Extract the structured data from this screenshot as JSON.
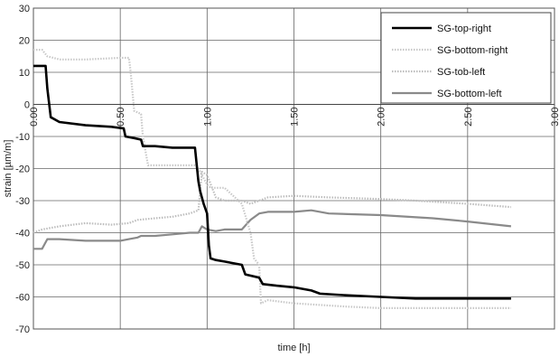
{
  "chart_data": {
    "type": "line",
    "title": "",
    "xlabel": "time [h]",
    "ylabel": "strain [µm/m]",
    "xlim": [
      0,
      3
    ],
    "ylim": [
      -70,
      30
    ],
    "x_ticks": [
      "0.00",
      "0.50",
      "1.00",
      "1.50",
      "2.00",
      "2.50",
      "3.00"
    ],
    "y_ticks": [
      "30",
      "20",
      "10",
      "0",
      "-10",
      "-20",
      "-30",
      "-40",
      "-50",
      "-60",
      "-70"
    ],
    "grid": true,
    "legend_position": "top-right",
    "series": [
      {
        "name": "SG-top-right",
        "color": "#000000",
        "style": "solid-thick",
        "x": [
          0.0,
          0.07,
          0.08,
          0.1,
          0.15,
          0.3,
          0.45,
          0.52,
          0.53,
          0.58,
          0.62,
          0.63,
          0.7,
          0.8,
          0.93,
          0.95,
          0.96,
          0.98,
          1.0,
          1.01,
          1.02,
          1.05,
          1.1,
          1.2,
          1.22,
          1.3,
          1.32,
          1.4,
          1.5,
          1.6,
          1.65,
          1.8,
          2.0,
          2.2,
          2.5,
          2.75
        ],
        "y": [
          12,
          12,
          5,
          -4,
          -5.5,
          -6.5,
          -7,
          -7.5,
          -10,
          -10.5,
          -11,
          -13,
          -13,
          -13.5,
          -13.5,
          -24,
          -27,
          -31,
          -34,
          -44,
          -48,
          -48.5,
          -49,
          -50,
          -53,
          -54,
          -56,
          -56.5,
          -57,
          -58,
          -59,
          -59.5,
          -60,
          -60.5,
          -60.5,
          -60.5
        ]
      },
      {
        "name": "SG-bottom-right",
        "color": "#c8c8c8",
        "style": "dotted",
        "x": [
          0.0,
          0.05,
          0.08,
          0.15,
          0.3,
          0.5,
          0.55,
          0.56,
          0.58,
          0.62,
          0.63,
          0.66,
          0.7,
          0.8,
          0.93,
          0.95,
          0.97,
          1.0,
          1.02,
          1.05,
          1.1,
          1.2,
          1.25,
          1.27,
          1.3,
          1.31,
          1.35,
          1.5,
          1.8,
          2.0,
          2.3,
          2.5,
          2.75
        ],
        "y": [
          17,
          17,
          15,
          14,
          14,
          14.5,
          14.5,
          10,
          -2,
          -3,
          -10,
          -19,
          -19,
          -19,
          -19,
          -20,
          -22,
          -25,
          -26,
          -26,
          -26,
          -31,
          -40,
          -48,
          -50,
          -62,
          -61,
          -62,
          -63,
          -63.5,
          -63.5,
          -63.5,
          -63.5
        ]
      },
      {
        "name": "SG-tob-left",
        "color": "#bdbdbd",
        "style": "dotted",
        "x": [
          0.0,
          0.05,
          0.15,
          0.3,
          0.45,
          0.55,
          0.6,
          0.7,
          0.8,
          0.9,
          0.95,
          0.97,
          1.0,
          1.05,
          1.1,
          1.2,
          1.25,
          1.3,
          1.35,
          1.5,
          1.7,
          2.0,
          2.2,
          2.5,
          2.75
        ],
        "y": [
          -40,
          -39,
          -38,
          -37,
          -37.5,
          -37,
          -36,
          -35.5,
          -35,
          -34,
          -33,
          -21,
          -22,
          -29,
          -30,
          -30,
          -31,
          -30,
          -29,
          -28.5,
          -29,
          -29.5,
          -30,
          -31,
          -32
        ]
      },
      {
        "name": "SG-bottom-left",
        "color": "#8a8a8a",
        "style": "solid",
        "x": [
          0.0,
          0.05,
          0.08,
          0.15,
          0.3,
          0.5,
          0.55,
          0.6,
          0.62,
          0.7,
          0.8,
          0.9,
          0.95,
          0.97,
          1.0,
          1.05,
          1.1,
          1.2,
          1.25,
          1.3,
          1.35,
          1.5,
          1.6,
          1.7,
          2.0,
          2.3,
          2.5,
          2.75
        ],
        "y": [
          -45,
          -45,
          -42,
          -42,
          -42.5,
          -42.5,
          -42,
          -41.5,
          -41,
          -41,
          -40.5,
          -40,
          -40,
          -38,
          -39,
          -39.5,
          -39,
          -39,
          -36,
          -34,
          -33.5,
          -33.5,
          -33,
          -34,
          -34.5,
          -35.5,
          -36.5,
          -38
        ]
      }
    ]
  }
}
